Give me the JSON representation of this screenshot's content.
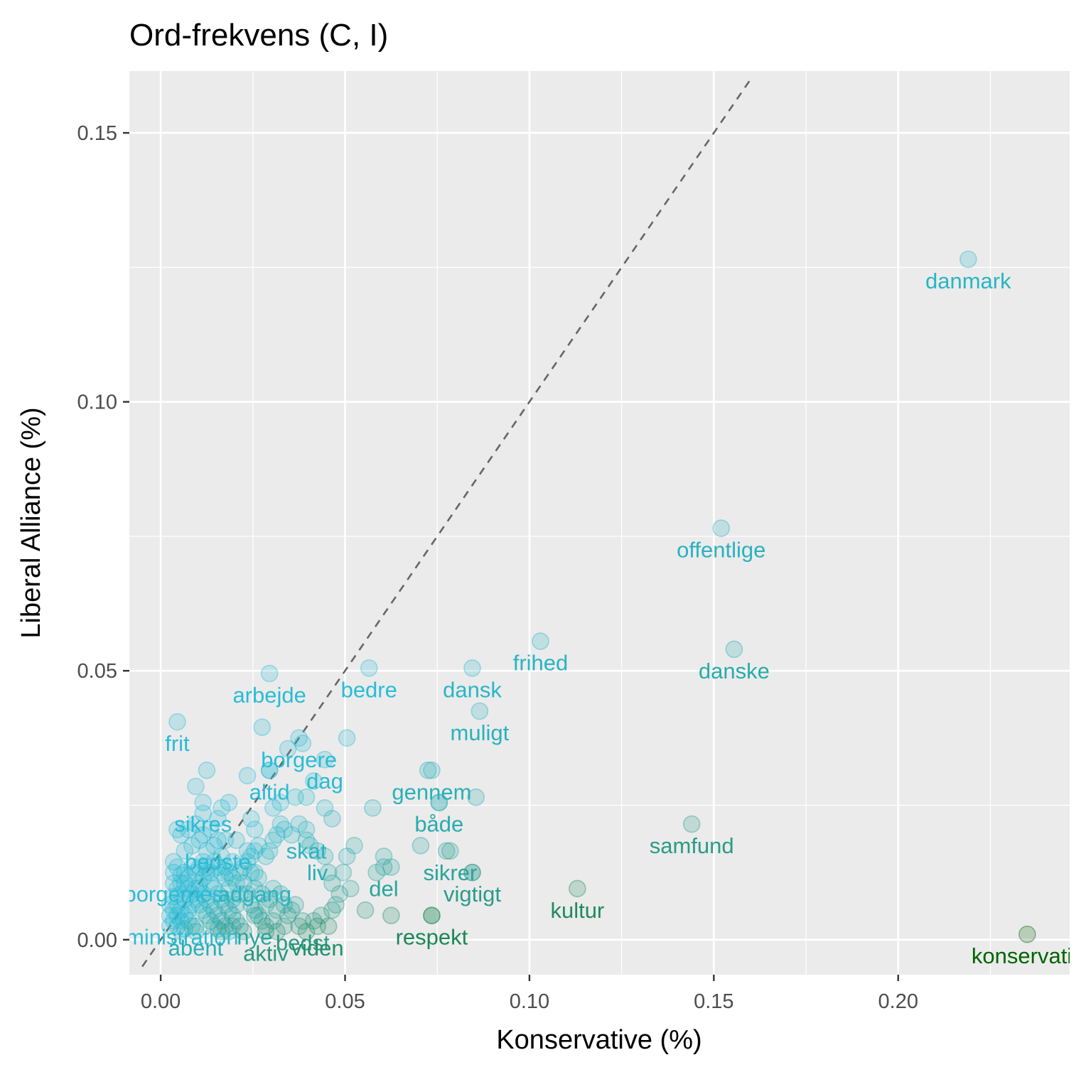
{
  "chart_data": {
    "type": "scatter",
    "title": "Ord-frekvens (C, I)",
    "xlabel": "Konservative (%)",
    "ylabel": "Liberal Alliance (%)",
    "xlim": [
      -0.0085,
      0.2465
    ],
    "ylim": [
      -0.0065,
      0.1615
    ],
    "x_ticks": [
      0.0,
      0.05,
      0.1,
      0.15,
      0.2
    ],
    "x_tick_labels": [
      "0.00",
      "0.05",
      "0.10",
      "0.15",
      "0.20"
    ],
    "y_ticks": [
      0.0,
      0.05,
      0.1,
      0.15
    ],
    "y_tick_labels": [
      "0.00",
      "0.05",
      "0.10",
      "0.15"
    ],
    "grid": true,
    "reference_line": {
      "slope": 1,
      "intercept": 0,
      "style": "dashed"
    },
    "colors": {
      "panel_bg": "#ebebeb",
      "grid": "#ffffff",
      "low": "#29bcd6",
      "mid": "#2a9a84",
      "high": "#006400",
      "ref_line": "#666666"
    },
    "labeled_points": [
      {
        "word": "danmark",
        "x": 0.219,
        "y": 0.1265
      },
      {
        "word": "offentlige",
        "x": 0.152,
        "y": 0.0765
      },
      {
        "word": "frihed",
        "x": 0.103,
        "y": 0.0555
      },
      {
        "word": "danske",
        "x": 0.1555,
        "y": 0.054
      },
      {
        "word": "dansk",
        "x": 0.0845,
        "y": 0.0505
      },
      {
        "word": "bedre",
        "x": 0.0565,
        "y": 0.0505
      },
      {
        "word": "arbejde",
        "x": 0.0295,
        "y": 0.0495
      },
      {
        "word": "muligt",
        "x": 0.0865,
        "y": 0.0425
      },
      {
        "word": "frit",
        "x": 0.0045,
        "y": 0.0405
      },
      {
        "word": "borgere",
        "x": 0.0375,
        "y": 0.0375
      },
      {
        "word": "dag",
        "x": 0.0445,
        "y": 0.0335
      },
      {
        "word": "altid",
        "x": 0.0295,
        "y": 0.0315
      },
      {
        "word": "gennem",
        "x": 0.0735,
        "y": 0.0315
      },
      {
        "word": "sikres",
        "x": 0.0115,
        "y": 0.0255
      },
      {
        "word": "skat",
        "x": 0.0395,
        "y": 0.0205
      },
      {
        "word": "både",
        "x": 0.0755,
        "y": 0.0255
      },
      {
        "word": "samfund",
        "x": 0.144,
        "y": 0.0215
      },
      {
        "word": "bedste",
        "x": 0.0155,
        "y": 0.0185
      },
      {
        "word": "liv",
        "x": 0.0425,
        "y": 0.0165
      },
      {
        "word": "vigtigt",
        "x": 0.0845,
        "y": 0.0125
      },
      {
        "word": "adgang",
        "x": 0.0255,
        "y": 0.0125
      },
      {
        "word": "borgernes",
        "x": 0.0035,
        "y": 0.0125
      },
      {
        "word": "del",
        "x": 0.0605,
        "y": 0.0135
      },
      {
        "word": "sikrer",
        "x": 0.0785,
        "y": 0.0165
      },
      {
        "word": "kultur",
        "x": 0.113,
        "y": 0.0095
      },
      {
        "word": "bedst",
        "x": 0.0385,
        "y": 0.0035
      },
      {
        "word": "nye",
        "x": 0.0255,
        "y": 0.0045
      },
      {
        "word": "administration",
        "x": 0.0025,
        "y": 0.0045
      },
      {
        "word": "respekt",
        "x": 0.0735,
        "y": 0.0045
      },
      {
        "word": "åbent",
        "x": 0.0095,
        "y": 0.0025
      },
      {
        "word": "aktiv",
        "x": 0.0285,
        "y": 0.0015
      },
      {
        "word": "viden",
        "x": 0.0425,
        "y": 0.0025
      },
      {
        "word": "konservativ",
        "x": 0.235,
        "y": 0.001
      }
    ],
    "cluster_points": [
      [
        0.0045,
        0.0135
      ],
      [
        0.0055,
        0.012
      ],
      [
        0.0065,
        0.0105
      ],
      [
        0.0075,
        0.0095
      ],
      [
        0.0085,
        0.0085
      ],
      [
        0.0095,
        0.0075
      ],
      [
        0.0105,
        0.0065
      ],
      [
        0.0115,
        0.0055
      ],
      [
        0.0125,
        0.0045
      ],
      [
        0.0135,
        0.0035
      ],
      [
        0.0145,
        0.0025
      ],
      [
        0.0155,
        0.002
      ],
      [
        0.0165,
        0.0015
      ],
      [
        0.0035,
        0.008
      ],
      [
        0.0045,
        0.0065
      ],
      [
        0.0055,
        0.0055
      ],
      [
        0.0065,
        0.0045
      ],
      [
        0.0075,
        0.0035
      ],
      [
        0.0085,
        0.0025
      ],
      [
        0.0095,
        0.0015
      ],
      [
        0.0035,
        0.0035
      ],
      [
        0.0045,
        0.0025
      ],
      [
        0.0055,
        0.0015
      ],
      [
        0.0065,
        0.002
      ],
      [
        0.0075,
        0.0055
      ],
      [
        0.0085,
        0.0065
      ],
      [
        0.0095,
        0.0095
      ],
      [
        0.0105,
        0.0105
      ],
      [
        0.0115,
        0.0115
      ],
      [
        0.0125,
        0.0125
      ],
      [
        0.0135,
        0.0105
      ],
      [
        0.0145,
        0.0095
      ],
      [
        0.0155,
        0.0085
      ],
      [
        0.0165,
        0.0075
      ],
      [
        0.0175,
        0.0065
      ],
      [
        0.0185,
        0.0055
      ],
      [
        0.0195,
        0.0045
      ],
      [
        0.0205,
        0.0035
      ],
      [
        0.0215,
        0.0025
      ],
      [
        0.0225,
        0.0015
      ],
      [
        0.0175,
        0.0115
      ],
      [
        0.0185,
        0.0095
      ],
      [
        0.0195,
        0.0075
      ],
      [
        0.0205,
        0.0065
      ],
      [
        0.0215,
        0.0085
      ],
      [
        0.0225,
        0.0105
      ],
      [
        0.0235,
        0.0085
      ],
      [
        0.0245,
        0.0065
      ],
      [
        0.0255,
        0.0055
      ],
      [
        0.0265,
        0.0045
      ],
      [
        0.0275,
        0.0035
      ],
      [
        0.0285,
        0.0025
      ],
      [
        0.0305,
        0.0035
      ],
      [
        0.0315,
        0.0015
      ],
      [
        0.0335,
        0.0025
      ],
      [
        0.0345,
        0.0045
      ],
      [
        0.0355,
        0.0055
      ],
      [
        0.0365,
        0.0065
      ],
      [
        0.0375,
        0.0025
      ],
      [
        0.0395,
        0.0015
      ],
      [
        0.0415,
        0.0035
      ],
      [
        0.0435,
        0.0045
      ],
      [
        0.0455,
        0.0025
      ],
      [
        0.0465,
        0.0055
      ],
      [
        0.0475,
        0.0065
      ],
      [
        0.0295,
        0.0075
      ],
      [
        0.0305,
        0.0095
      ],
      [
        0.0315,
        0.0055
      ],
      [
        0.0325,
        0.0085
      ],
      [
        0.0335,
        0.0065
      ],
      [
        0.0255,
        0.0095
      ],
      [
        0.0265,
        0.0115
      ],
      [
        0.0275,
        0.0085
      ],
      [
        0.0285,
        0.0065
      ],
      [
        0.0245,
        0.0125
      ],
      [
        0.0195,
        0.0145
      ],
      [
        0.0165,
        0.0155
      ],
      [
        0.0145,
        0.0175
      ],
      [
        0.0125,
        0.0165
      ],
      [
        0.0105,
        0.0185
      ],
      [
        0.0085,
        0.0175
      ],
      [
        0.0065,
        0.0165
      ],
      [
        0.0055,
        0.0195
      ],
      [
        0.0075,
        0.0205
      ],
      [
        0.0095,
        0.0215
      ],
      [
        0.0115,
        0.0195
      ],
      [
        0.0135,
        0.0205
      ],
      [
        0.0155,
        0.0225
      ],
      [
        0.0175,
        0.0185
      ],
      [
        0.0045,
        0.0205
      ],
      [
        0.0035,
        0.0145
      ],
      [
        0.0035,
        0.0105
      ],
      [
        0.0045,
        0.0095
      ],
      [
        0.0055,
        0.0085
      ],
      [
        0.0065,
        0.0075
      ],
      [
        0.0105,
        0.0135
      ],
      [
        0.0115,
        0.0145
      ],
      [
        0.0125,
        0.0135
      ],
      [
        0.0135,
        0.0125
      ],
      [
        0.0145,
        0.0145
      ],
      [
        0.0155,
        0.0135
      ],
      [
        0.0165,
        0.0125
      ],
      [
        0.0175,
        0.0135
      ],
      [
        0.0185,
        0.0125
      ],
      [
        0.0195,
        0.0115
      ],
      [
        0.0205,
        0.0105
      ],
      [
        0.0215,
        0.0125
      ],
      [
        0.0225,
        0.0135
      ],
      [
        0.0235,
        0.0145
      ],
      [
        0.0245,
        0.0155
      ],
      [
        0.0255,
        0.0165
      ],
      [
        0.0265,
        0.0175
      ],
      [
        0.0285,
        0.0155
      ],
      [
        0.0295,
        0.0165
      ],
      [
        0.0305,
        0.0185
      ],
      [
        0.0315,
        0.0195
      ],
      [
        0.0325,
        0.0215
      ],
      [
        0.0335,
        0.0205
      ],
      [
        0.0355,
        0.0195
      ],
      [
        0.0375,
        0.0215
      ],
      [
        0.0395,
        0.0185
      ],
      [
        0.0405,
        0.0175
      ],
      [
        0.0445,
        0.0155
      ],
      [
        0.0455,
        0.0125
      ],
      [
        0.0465,
        0.0105
      ],
      [
        0.0485,
        0.0085
      ],
      [
        0.0505,
        0.0155
      ],
      [
        0.0525,
        0.0175
      ],
      [
        0.0585,
        0.0125
      ],
      [
        0.0605,
        0.0155
      ],
      [
        0.0625,
        0.0135
      ],
      [
        0.0705,
        0.0175
      ],
      [
        0.0775,
        0.0165
      ],
      [
        0.0845,
        0.0125
      ],
      [
        0.0855,
        0.0265
      ],
      [
        0.0755,
        0.0255
      ],
      [
        0.0725,
        0.0315
      ],
      [
        0.0575,
        0.0245
      ],
      [
        0.0505,
        0.0375
      ],
      [
        0.0385,
        0.0365
      ],
      [
        0.0395,
        0.0265
      ],
      [
        0.0365,
        0.0265
      ],
      [
        0.0325,
        0.0255
      ],
      [
        0.0305,
        0.0245
      ],
      [
        0.0245,
        0.0225
      ],
      [
        0.0255,
        0.0205
      ],
      [
        0.0235,
        0.0305
      ],
      [
        0.0295,
        0.0315
      ],
      [
        0.0345,
        0.0355
      ],
      [
        0.0275,
        0.0395
      ],
      [
        0.0125,
        0.0315
      ],
      [
        0.0095,
        0.0285
      ],
      [
        0.0185,
        0.0255
      ],
      [
        0.0165,
        0.0245
      ],
      [
        0.0115,
        0.0235
      ],
      [
        0.0515,
        0.0095
      ],
      [
        0.0555,
        0.0055
      ],
      [
        0.0625,
        0.0045
      ],
      [
        0.0735,
        0.0045
      ],
      [
        0.0495,
        0.0125
      ],
      [
        0.0415,
        0.0295
      ],
      [
        0.0445,
        0.0245
      ],
      [
        0.0465,
        0.0225
      ],
      [
        0.0205,
        0.0185
      ],
      [
        0.0235,
        0.0165
      ],
      [
        0.0045,
        0.0045
      ],
      [
        0.0055,
        0.0035
      ],
      [
        0.0035,
        0.0055
      ],
      [
        0.0025,
        0.0025
      ],
      [
        0.0025,
        0.0065
      ],
      [
        0.0055,
        0.0105
      ],
      [
        0.0065,
        0.0125
      ],
      [
        0.0075,
        0.0115
      ],
      [
        0.0085,
        0.0135
      ],
      [
        0.0095,
        0.0125
      ],
      [
        0.0105,
        0.0095
      ],
      [
        0.0115,
        0.0085
      ],
      [
        0.0125,
        0.0075
      ],
      [
        0.0135,
        0.0065
      ],
      [
        0.0145,
        0.0055
      ],
      [
        0.0155,
        0.0045
      ],
      [
        0.0165,
        0.0035
      ],
      [
        0.0175,
        0.0025
      ],
      [
        0.0185,
        0.0015
      ],
      [
        0.0195,
        0.0025
      ]
    ]
  }
}
